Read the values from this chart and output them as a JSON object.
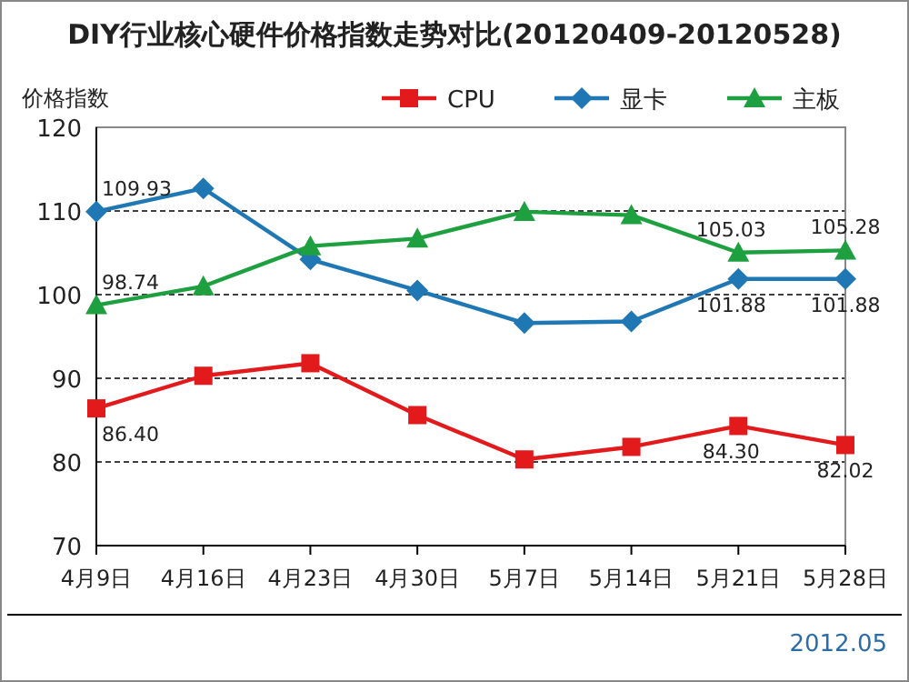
{
  "chart_data": {
    "type": "line",
    "title": "DIY行业核心硬件价格指数走势对比(20120409-20120528)",
    "ylabel": "价格指数",
    "categories": [
      "4月9日",
      "4月16日",
      "4月23日",
      "4月30日",
      "5月7日",
      "5月14日",
      "5月21日",
      "5月28日"
    ],
    "series": [
      {
        "name": "CPU",
        "color": "#e31a1c",
        "marker": "square",
        "values": [
          86.4,
          90.3,
          91.8,
          85.6,
          80.3,
          81.8,
          84.3,
          82.02
        ],
        "value_labels": [
          "86.40",
          null,
          null,
          null,
          null,
          null,
          "84.30",
          "82.02"
        ]
      },
      {
        "name": "显卡",
        "color": "#1f78b4",
        "marker": "diamond",
        "values": [
          109.93,
          112.7,
          104.2,
          100.5,
          96.6,
          96.8,
          101.88,
          101.88
        ],
        "value_labels": [
          "109.93",
          null,
          null,
          null,
          null,
          null,
          "101.88",
          "101.88"
        ]
      },
      {
        "name": "主板",
        "color": "#1fa040",
        "marker": "triangle",
        "values": [
          98.74,
          101.0,
          105.8,
          106.7,
          109.9,
          109.5,
          105.03,
          105.28
        ],
        "value_labels": [
          "98.74",
          null,
          null,
          null,
          null,
          null,
          "105.03",
          "105.28"
        ]
      }
    ],
    "ylim": [
      70,
      120
    ],
    "yticks": [
      70,
      80,
      90,
      100,
      110,
      120
    ],
    "grid": "y",
    "legend": "top",
    "annotations": [
      "2012.05"
    ]
  }
}
